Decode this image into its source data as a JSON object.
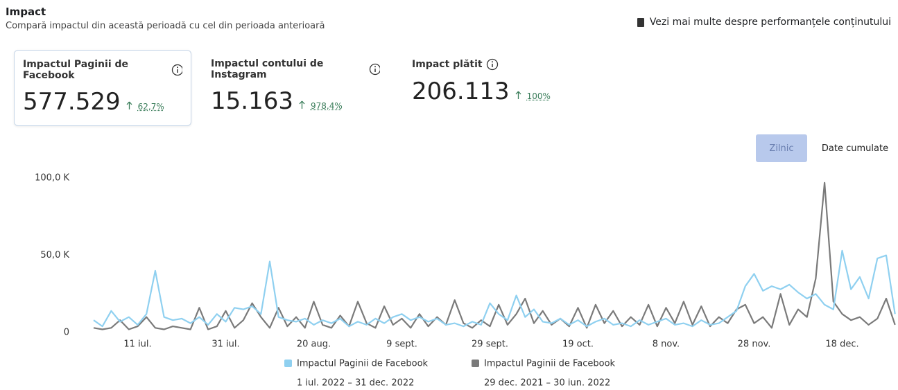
{
  "header": {
    "title": "Impact",
    "subtitle": "Compară impactul din această perioadă cu cel din perioada anterioară",
    "link": "Vezi mai multe despre performanțele conținutului"
  },
  "metrics": [
    {
      "label": "Impactul Paginii de Facebook",
      "value": "577.529",
      "change": "62,7%"
    },
    {
      "label": "Impactul contului de Instagram",
      "value": "15.163",
      "change": "978,4%"
    },
    {
      "label": "Impact plătit",
      "value": "206.113",
      "change": "100%"
    }
  ],
  "toggle": [
    "Zilnic",
    "Date cumulate"
  ],
  "chart_data": {
    "type": "line",
    "categories": [
      null,
      null,
      null,
      null,
      null,
      "11 iul.",
      null,
      null,
      null,
      null,
      null,
      null,
      null,
      null,
      null,
      "31 iul.",
      null,
      null,
      null,
      null,
      null,
      null,
      null,
      null,
      null,
      "20 aug.",
      null,
      null,
      null,
      null,
      null,
      null,
      null,
      null,
      null,
      "9 sept.",
      null,
      null,
      null,
      null,
      null,
      null,
      null,
      null,
      null,
      "29 sept.",
      null,
      null,
      null,
      null,
      null,
      null,
      null,
      null,
      null,
      "19 oct.",
      null,
      null,
      null,
      null,
      null,
      null,
      null,
      null,
      null,
      "8 nov.",
      null,
      null,
      null,
      null,
      null,
      null,
      null,
      null,
      null,
      "28 nov.",
      null,
      null,
      null,
      null,
      null,
      null,
      null,
      null,
      null,
      "18 dec.",
      null,
      null,
      null,
      null,
      null,
      null
    ],
    "ylim": [
      0,
      105000
    ],
    "yticks": [
      0,
      {
        "value": 50000,
        "label": "50,0 K"
      },
      {
        "value": 100000,
        "label": "100,0 K"
      }
    ],
    "series": [
      {
        "name": "Impactul Paginii de Facebook",
        "period": "1 iul. 2022 – 31 dec. 2022",
        "color": "#8fd0f0",
        "values": [
          8000,
          4000,
          14000,
          7000,
          10000,
          5000,
          12000,
          40000,
          10000,
          8000,
          9000,
          6000,
          10000,
          5000,
          12000,
          7000,
          16000,
          15000,
          17000,
          12000,
          46000,
          10000,
          8000,
          7000,
          9000,
          5000,
          8000,
          6000,
          9000,
          4000,
          7000,
          5000,
          9000,
          6000,
          10000,
          12000,
          8000,
          10000,
          7000,
          9000,
          5000,
          6000,
          4000,
          7000,
          5000,
          19000,
          12000,
          8000,
          24000,
          10000,
          15000,
          7000,
          6000,
          9000,
          5000,
          8000,
          4000,
          7000,
          9000,
          5000,
          6000,
          4000,
          8000,
          5000,
          7000,
          9000,
          5000,
          6000,
          4000,
          8000,
          5000,
          6000,
          10000,
          14000,
          30000,
          38000,
          27000,
          30000,
          28000,
          31000,
          26000,
          22000,
          25000,
          18000,
          15000,
          53000,
          28000,
          36000,
          22000,
          48000,
          50000,
          12000
        ]
      },
      {
        "name": "Impactul Paginii de Facebook",
        "period": "29 dec. 2021 – 30 iun. 2022",
        "color": "#7a7a7a",
        "values": [
          3000,
          2000,
          3000,
          8000,
          2000,
          4000,
          10000,
          3000,
          2000,
          4000,
          3000,
          2000,
          16000,
          2000,
          4000,
          14000,
          3000,
          8000,
          19000,
          10000,
          3000,
          16000,
          4000,
          10000,
          3000,
          20000,
          5000,
          3000,
          11000,
          4000,
          20000,
          6000,
          3000,
          17000,
          5000,
          9000,
          3000,
          12000,
          4000,
          10000,
          5000,
          21000,
          6000,
          3000,
          8000,
          4000,
          18000,
          5000,
          12000,
          22000,
          6000,
          14000,
          5000,
          9000,
          4000,
          16000,
          3000,
          18000,
          6000,
          14000,
          4000,
          10000,
          5000,
          18000,
          4000,
          16000,
          6000,
          20000,
          5000,
          17000,
          4000,
          10000,
          6000,
          15000,
          18000,
          6000,
          10000,
          3000,
          25000,
          5000,
          15000,
          10000,
          35000,
          97000,
          20000,
          12000,
          8000,
          10000,
          5000,
          9000,
          22000,
          5000
        ]
      }
    ]
  }
}
